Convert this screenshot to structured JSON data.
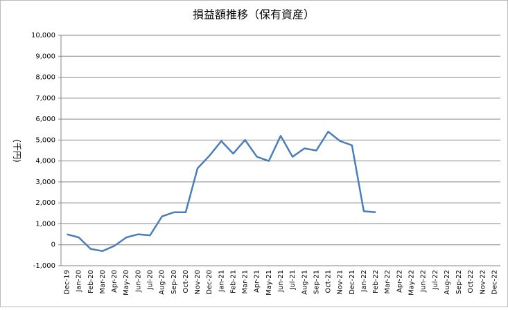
{
  "chart_data": {
    "type": "line",
    "title": "損益額推移（保有資産）",
    "y_label": "(千円)",
    "categories": [
      "Dec-19",
      "Jan-20",
      "Feb-20",
      "Mar-20",
      "Apr-20",
      "May-20",
      "Jun-20",
      "Jul-20",
      "Aug-20",
      "Sep-20",
      "Oct-20",
      "Nov-20",
      "Dec-20",
      "Jan-21",
      "Feb-21",
      "Mar-21",
      "Apr-21",
      "May-21",
      "Jun-21",
      "Jul-21",
      "Aug-21",
      "Sep-21",
      "Oct-21",
      "Nov-21",
      "Dec-21",
      "Jan-22",
      "Feb-22",
      "Mar-22",
      "Apr-22",
      "May-22",
      "Jun-22",
      "Jul-22",
      "Aug-22",
      "Sep-22",
      "Oct-22",
      "Nov-22",
      "Dec-22"
    ],
    "values": [
      500,
      350,
      -200,
      -300,
      -50,
      350,
      500,
      450,
      1350,
      1550,
      1550,
      3650,
      4250,
      4950,
      4350,
      5000,
      4200,
      4000,
      5200,
      4200,
      4600,
      4500,
      5400,
      4950,
      4750,
      1600,
      1550,
      null,
      null,
      null,
      null,
      null,
      null,
      null,
      null,
      null,
      null
    ],
    "color": "#4a7ebb",
    "ylim": [
      -1000,
      10000
    ],
    "yticks": [
      {
        "value": -1000,
        "label": "-1,000"
      },
      0,
      {
        "value": 1000,
        "label": "1,000"
      },
      {
        "value": 2000,
        "label": "2,000"
      },
      {
        "value": 3000,
        "label": "3,000"
      },
      {
        "value": 4000,
        "label": "4,000"
      },
      {
        "value": 5000,
        "label": "5,000"
      },
      {
        "value": 6000,
        "label": "6,000"
      },
      {
        "value": 7000,
        "label": "7,000"
      },
      {
        "value": 8000,
        "label": "8,000"
      },
      {
        "value": 9000,
        "label": "9,000"
      },
      {
        "value": 10000,
        "label": "10,000"
      }
    ],
    "grid": true
  }
}
